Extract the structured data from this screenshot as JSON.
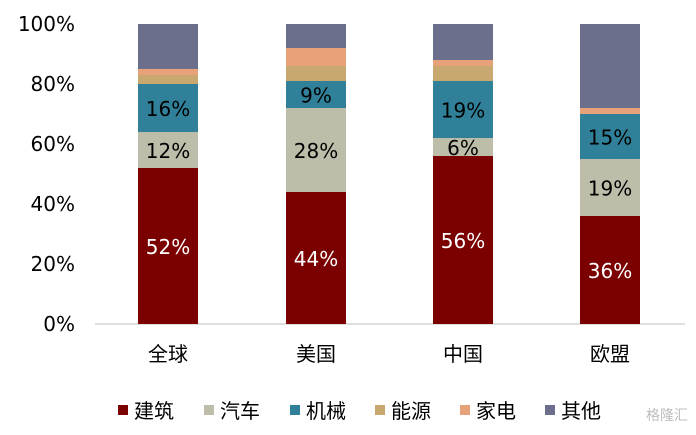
{
  "chart_data": {
    "type": "bar",
    "stacked": true,
    "categories": [
      "全球",
      "美国",
      "中国",
      "欧盟"
    ],
    "series": [
      {
        "name": "建筑",
        "color": "#7b0000",
        "values": [
          52,
          44,
          56,
          36
        ]
      },
      {
        "name": "汽车",
        "color": "#bdbdaa",
        "values": [
          12,
          28,
          6,
          19
        ]
      },
      {
        "name": "机械",
        "color": "#2f8098",
        "values": [
          16,
          9,
          19,
          15
        ]
      },
      {
        "name": "能源",
        "color": "#c8a86e",
        "values": [
          3,
          5,
          5,
          0
        ]
      },
      {
        "name": "家电",
        "color": "#e8a27a",
        "values": [
          2,
          6,
          2,
          2
        ]
      },
      {
        "name": "其他",
        "color": "#6b6f8c",
        "values": [
          15,
          8,
          12,
          28
        ]
      }
    ],
    "data_labels": [
      [
        "52%",
        "44%",
        "56%",
        "36%"
      ],
      [
        "12%",
        "28%",
        "6%",
        "19%"
      ],
      [
        "16%",
        "9%",
        "19%",
        "15%"
      ]
    ],
    "yticks": [
      "0%",
      "20%",
      "40%",
      "60%",
      "80%",
      "100%"
    ],
    "ylim": [
      0,
      100
    ],
    "grid": false,
    "legend": "bottom"
  },
  "watermark": "格隆汇"
}
